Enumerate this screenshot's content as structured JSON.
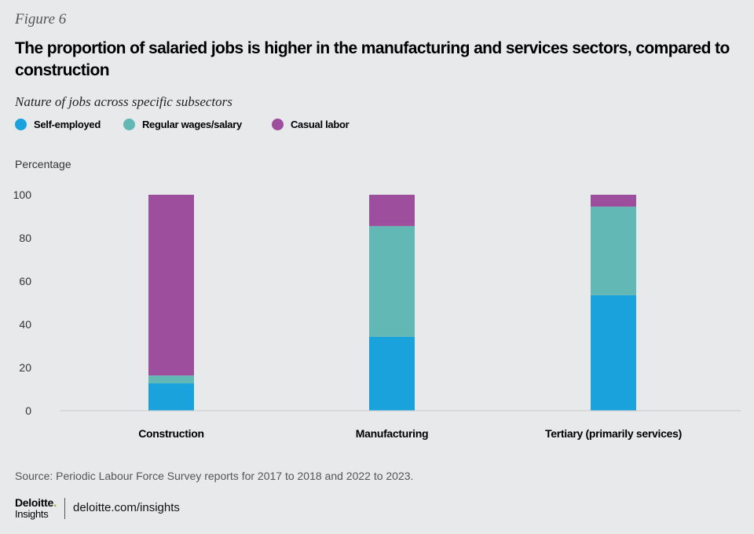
{
  "figure_label": "Figure 6",
  "title": "The proportion of salaried jobs is higher in the manufacturing and services sectors, compared to construction",
  "subtitle": "Nature of jobs across specific subsectors",
  "legend": [
    {
      "label": "Self-employed",
      "color": "#1aa2dc"
    },
    {
      "label": "Regular wages/salary",
      "color": "#62b8b4"
    },
    {
      "label": "Casual labor",
      "color": "#9d4f9d"
    }
  ],
  "source": "Source: Periodic Labour Force Survey reports for 2017 to 2018 and 2022 to 2023.",
  "footer": {
    "brand": "Deloitte",
    "brand_dot": ".",
    "brand_sub": "Insights",
    "site": "deloitte.com/insights"
  },
  "chart_data": {
    "type": "bar",
    "stacked": true,
    "title": "The proportion of salaried jobs is higher in the manufacturing and services sectors, compared to construction",
    "subtitle": "Nature of jobs across specific subsectors",
    "xlabel": "",
    "ylabel": "Percentage",
    "ylim": [
      0,
      100
    ],
    "yticks": [
      0,
      20,
      40,
      60,
      80,
      100
    ],
    "grid": false,
    "legend_position": "top-left",
    "categories": [
      "Construction",
      "Manufacturing",
      "Tertiary (primarily services)"
    ],
    "series": [
      {
        "name": "Self-employed",
        "color": "#1aa2dc",
        "values": [
          12.7,
          34.2,
          53.5
        ]
      },
      {
        "name": "Regular wages/salary",
        "color": "#62b8b4",
        "values": [
          3.6,
          51.3,
          41.0
        ]
      },
      {
        "name": "Casual labor",
        "color": "#9d4f9d",
        "values": [
          83.7,
          14.5,
          5.5
        ]
      }
    ]
  }
}
